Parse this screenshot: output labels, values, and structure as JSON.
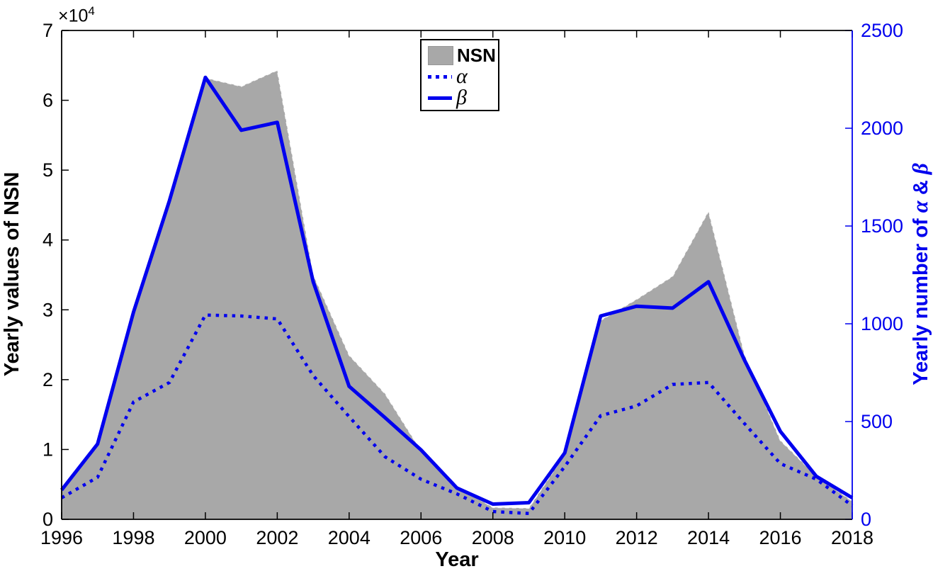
{
  "chart_data": {
    "type": "combo-area-line",
    "title": "",
    "x_label": "Year",
    "x_range": [
      1996,
      2018
    ],
    "x_ticks": [
      1996,
      1998,
      2000,
      2002,
      2004,
      2006,
      2008,
      2010,
      2012,
      2014,
      2016,
      2018
    ],
    "left_axis": {
      "label": "Yearly values of NSN",
      "multiplier_base": "×10",
      "multiplier_exp": "4",
      "range": [
        0,
        70000
      ],
      "ticks": [
        0,
        1,
        2,
        3,
        4,
        5,
        6,
        7
      ],
      "tick_scale": 10000,
      "color": "#000000"
    },
    "right_axis": {
      "label_prefix": "Yearly number of ",
      "label_alpha": "α",
      "label_amp": " & ",
      "label_beta": "β",
      "range": [
        0,
        2500
      ],
      "ticks": [
        0,
        500,
        1000,
        1500,
        2000,
        2500
      ],
      "color": "#0000ee"
    },
    "categories": [
      1996,
      1997,
      1998,
      1999,
      2000,
      2001,
      2002,
      2003,
      2004,
      2005,
      2006,
      2007,
      2008,
      2009,
      2010,
      2011,
      2012,
      2013,
      2014,
      2015,
      2016,
      2017,
      2018
    ],
    "series": [
      {
        "name": "NSN",
        "type": "area",
        "axis": "left",
        "color": "#a8a8a8",
        "values": [
          4500,
          11000,
          30000,
          46000,
          63200,
          62000,
          64300,
          35000,
          23500,
          18000,
          9800,
          4800,
          1700,
          1600,
          9300,
          28500,
          31500,
          34800,
          44100,
          23600,
          11300,
          6200,
          2600
        ]
      },
      {
        "name": "α",
        "type": "line",
        "style": "dotted",
        "axis": "right",
        "color": "#0000ee",
        "values": [
          110,
          215,
          600,
          700,
          1045,
          1040,
          1025,
          735,
          525,
          320,
          205,
          130,
          40,
          30,
          270,
          530,
          580,
          690,
          700,
          490,
          285,
          205,
          70
        ]
      },
      {
        "name": "β",
        "type": "line",
        "style": "solid",
        "axis": "right",
        "color": "#0000ee",
        "values": [
          150,
          385,
          1060,
          1630,
          2260,
          1990,
          2030,
          1215,
          680,
          520,
          355,
          160,
          78,
          85,
          340,
          1040,
          1090,
          1080,
          1215,
          815,
          450,
          220,
          110
        ]
      }
    ],
    "legend": {
      "position": "top-center",
      "entries": [
        "NSN",
        "α",
        "β"
      ]
    },
    "grid": false
  }
}
